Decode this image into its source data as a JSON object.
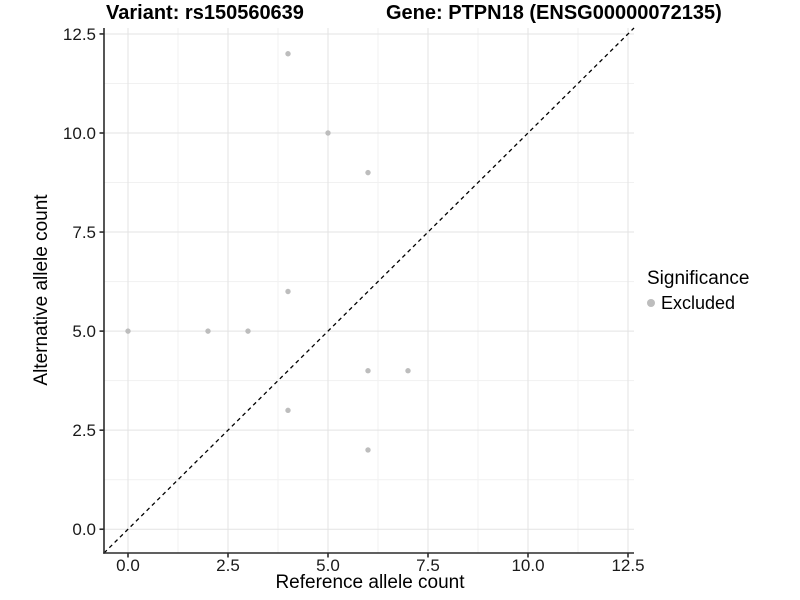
{
  "header": {
    "title_left": "Variant: rs150560639",
    "title_right": "Gene: PTPN18 (ENSG00000072135)"
  },
  "chart_data": {
    "type": "scatter",
    "title": "Variant: rs150560639 — Gene: PTPN18 (ENSG00000072135)",
    "xlabel": "Reference allele count",
    "ylabel": "Alternative allele count",
    "xlim": [
      -0.6,
      12.65
    ],
    "ylim": [
      -0.6,
      12.65
    ],
    "xticks": {
      "values": [
        0,
        2.5,
        5,
        7.5,
        10,
        12.5
      ],
      "labels": [
        "0.0",
        "2.5",
        "5.0",
        "7.5",
        "10.0",
        "12.5"
      ]
    },
    "yticks": {
      "values": [
        0,
        2.5,
        5,
        7.5,
        10,
        12.5
      ],
      "labels": [
        "0.0",
        "2.5",
        "5.0",
        "7.5",
        "10.0",
        "12.5"
      ]
    },
    "minor_grid_offset": 1.25,
    "grid": true,
    "reference_line": {
      "type": "identity",
      "slope": 1,
      "intercept": 0,
      "style": "dashed",
      "color": "#000000"
    },
    "series": [
      {
        "name": "Excluded",
        "color": "#bdbdbd",
        "points": [
          [
            0,
            5
          ],
          [
            2,
            5
          ],
          [
            3,
            5
          ],
          [
            4,
            3
          ],
          [
            4,
            6
          ],
          [
            4,
            12
          ],
          [
            5,
            10
          ],
          [
            6,
            2
          ],
          [
            6,
            4
          ],
          [
            6,
            9
          ],
          [
            7,
            4
          ]
        ]
      }
    ],
    "legend": {
      "title": "Significance",
      "position": "right",
      "entries": [
        {
          "label": "Excluded",
          "color": "#bdbdbd"
        }
      ]
    }
  },
  "colors": {
    "point": "#bdbdbd",
    "grid_major": "#e3e3e3",
    "grid_minor": "#f1f1f1",
    "axis_line": "#2b2b2b",
    "reference_line": "#000000",
    "background": "#ffffff"
  }
}
